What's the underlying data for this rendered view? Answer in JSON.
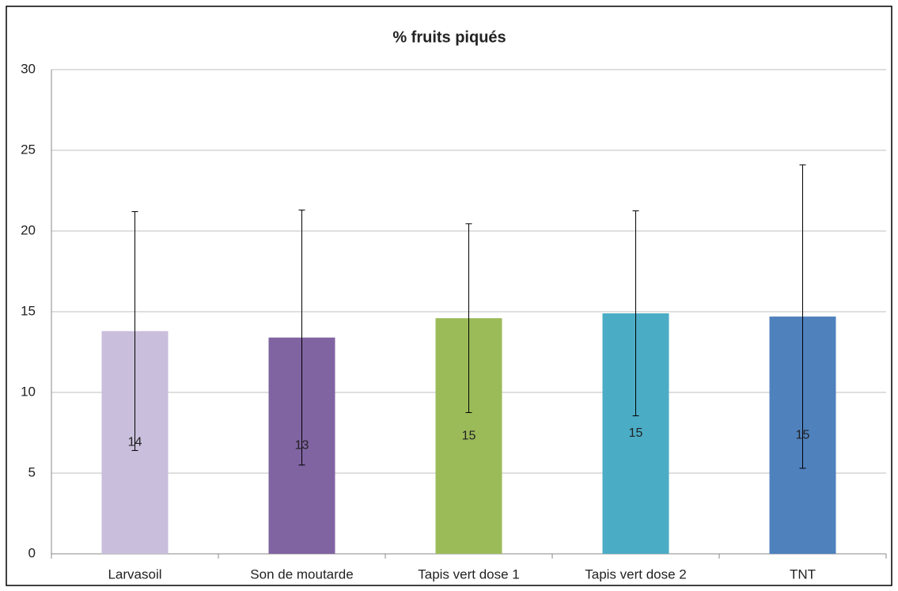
{
  "chart_data": {
    "type": "bar",
    "title": "% fruits piqués",
    "categories": [
      "Larvasoil",
      "Son de moutarde",
      "Tapis vert dose 1",
      "Tapis vert dose 2",
      "TNT"
    ],
    "values": [
      13.8,
      13.4,
      14.6,
      14.9,
      14.7
    ],
    "value_labels": [
      "14",
      "13",
      "15",
      "15",
      "15"
    ],
    "errors": [
      7.4,
      7.9,
      5.85,
      6.35,
      9.4
    ],
    "colors": [
      "#c9bedb",
      "#8064a2",
      "#9bbb59",
      "#4bacc6",
      "#4f81bd"
    ],
    "ylim": [
      0,
      30
    ],
    "yticks": [
      0,
      5,
      10,
      15,
      20,
      25,
      30
    ],
    "grid": true
  }
}
